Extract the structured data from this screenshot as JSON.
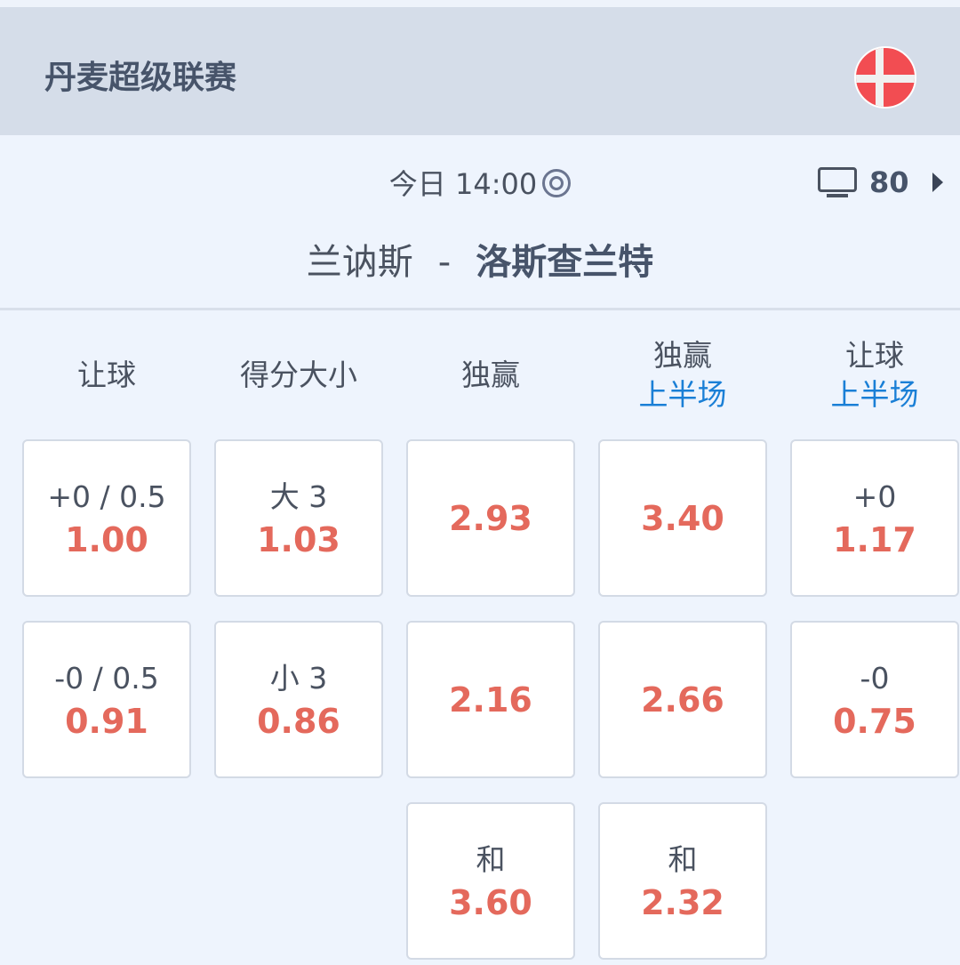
{
  "header": {
    "league": "丹麦超级联赛",
    "flag_icon": "denmark-flag-icon"
  },
  "match": {
    "time": "今日 14:00",
    "live_icon": "target-icon",
    "tv_count": "80",
    "home": "兰讷斯",
    "separator": "-",
    "away": "洛斯查兰特"
  },
  "columns": [
    {
      "title": "让球",
      "sub": ""
    },
    {
      "title": "得分大小",
      "sub": ""
    },
    {
      "title": "独赢",
      "sub": ""
    },
    {
      "title": "独赢",
      "sub": "上半场"
    },
    {
      "title": "让球",
      "sub": "上半场"
    }
  ],
  "cells": [
    [
      {
        "label": "+0 / 0.5",
        "odds": "1.00"
      },
      {
        "label": "大 3",
        "odds": "1.03"
      },
      {
        "label": "",
        "odds": "2.93"
      },
      {
        "label": "",
        "odds": "3.40"
      },
      {
        "label": "+0",
        "odds": "1.17"
      }
    ],
    [
      {
        "label": "-0 / 0.5",
        "odds": "0.91"
      },
      {
        "label": "小 3",
        "odds": "0.86"
      },
      {
        "label": "",
        "odds": "2.16"
      },
      {
        "label": "",
        "odds": "2.66"
      },
      {
        "label": "-0",
        "odds": "0.75"
      }
    ],
    [
      null,
      null,
      {
        "label": "和",
        "odds": "3.60"
      },
      {
        "label": "和",
        "odds": "2.32"
      },
      null
    ]
  ],
  "colors": {
    "odds": "#e4695c",
    "accent": "#1a7fd6",
    "header_bg": "#d5dde9"
  }
}
